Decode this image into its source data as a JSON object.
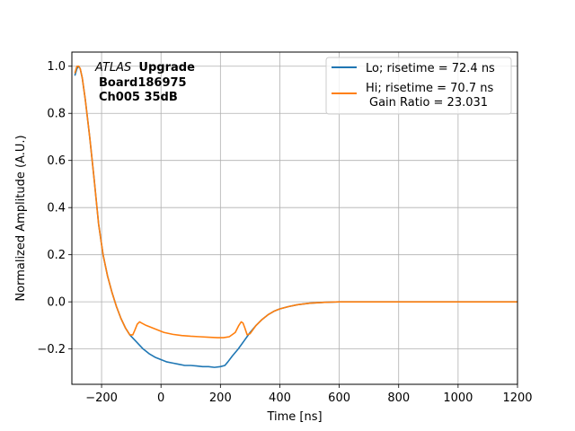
{
  "chart_data": {
    "type": "line",
    "xlabel": "Time [ns]",
    "ylabel": "Normalized Amplitude (A.U.)",
    "xlim": [
      -300,
      1200
    ],
    "ylim": [
      -0.35,
      1.06
    ],
    "xticks": [
      -200,
      0,
      200,
      400,
      600,
      800,
      1000,
      1200
    ],
    "xtick_labels": [
      "−200",
      "0",
      "200",
      "400",
      "600",
      "800",
      "1000",
      "1200"
    ],
    "yticks": [
      -0.2,
      0.0,
      0.2,
      0.4,
      0.6,
      0.8,
      1.0
    ],
    "ytick_labels": [
      "−0.2",
      "0.0",
      "0.2",
      "0.4",
      "0.6",
      "0.8",
      "1.0"
    ],
    "grid": true,
    "legend_position": "top-right",
    "annotation": {
      "line1_italic": "ATLAS",
      "line1_bold": "Upgrade",
      "line2": "Board186975",
      "line3": "Ch005 35dB"
    },
    "series": [
      {
        "name": "Lo; risetime = 72.4 ns",
        "color": "#1f77b4",
        "x": [
          -290,
          -283,
          -277,
          -272,
          -265,
          -255,
          -240,
          -225,
          -210,
          -195,
          -180,
          -165,
          -150,
          -135,
          -120,
          -105,
          -90,
          -75,
          -60,
          -40,
          -20,
          0,
          20,
          40,
          60,
          80,
          100,
          120,
          140,
          160,
          180,
          200,
          215,
          225,
          240,
          260,
          280,
          300,
          320,
          340,
          360,
          380,
          400,
          430,
          460,
          500,
          550,
          600,
          700,
          800,
          900,
          1000,
          1100,
          1200
        ],
        "y": [
          0.96,
          0.99,
          1.0,
          0.99,
          0.95,
          0.86,
          0.7,
          0.52,
          0.33,
          0.2,
          0.11,
          0.04,
          -0.02,
          -0.07,
          -0.11,
          -0.14,
          -0.16,
          -0.18,
          -0.2,
          -0.22,
          -0.235,
          -0.245,
          -0.255,
          -0.26,
          -0.265,
          -0.27,
          -0.27,
          -0.272,
          -0.275,
          -0.275,
          -0.278,
          -0.275,
          -0.27,
          -0.255,
          -0.23,
          -0.2,
          -0.165,
          -0.13,
          -0.1,
          -0.075,
          -0.055,
          -0.04,
          -0.03,
          -0.02,
          -0.012,
          -0.006,
          -0.002,
          0.0,
          0.0,
          0.0,
          0.0,
          0.0,
          0.0,
          0.0
        ]
      },
      {
        "name": "Hi; risetime = 70.7 ns",
        "name_line2": "Gain Ratio = 23.031",
        "color": "#ff7f0e",
        "x": [
          -290,
          -283,
          -277,
          -272,
          -265,
          -255,
          -240,
          -225,
          -210,
          -195,
          -180,
          -165,
          -150,
          -135,
          -120,
          -105,
          -95,
          -88,
          -80,
          -72,
          -65,
          -50,
          -30,
          -10,
          10,
          40,
          70,
          100,
          130,
          160,
          190,
          210,
          230,
          250,
          262,
          270,
          276,
          282,
          290,
          300,
          320,
          340,
          360,
          380,
          400,
          430,
          460,
          500,
          550,
          600,
          700,
          800,
          900,
          1000,
          1100,
          1200
        ],
        "y": [
          0.97,
          1.0,
          1.0,
          0.99,
          0.95,
          0.86,
          0.7,
          0.52,
          0.33,
          0.2,
          0.11,
          0.04,
          -0.02,
          -0.07,
          -0.11,
          -0.14,
          -0.14,
          -0.12,
          -0.095,
          -0.085,
          -0.09,
          -0.1,
          -0.11,
          -0.12,
          -0.13,
          -0.138,
          -0.143,
          -0.146,
          -0.148,
          -0.15,
          -0.152,
          -0.152,
          -0.148,
          -0.13,
          -0.1,
          -0.085,
          -0.09,
          -0.11,
          -0.14,
          -0.135,
          -0.1,
          -0.075,
          -0.055,
          -0.04,
          -0.03,
          -0.02,
          -0.012,
          -0.006,
          -0.002,
          0.0,
          0.0,
          0.0,
          0.0,
          0.0,
          0.0,
          0.0
        ]
      }
    ]
  }
}
